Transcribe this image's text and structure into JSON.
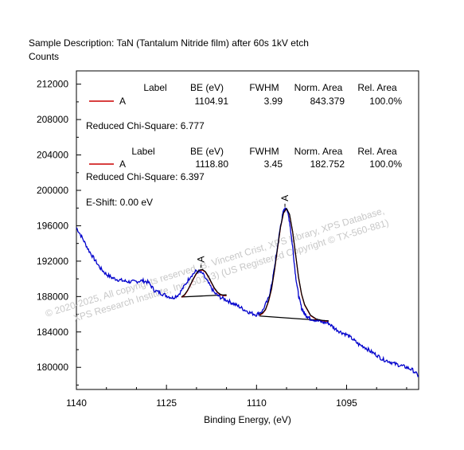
{
  "chart_data": {
    "type": "line",
    "title": "Sample Description:  TaN (Tantalum Nitride film) after 60s 1kV etch",
    "ylabel": "Counts",
    "xlabel": "Binding Energy, (eV)",
    "x_reversed": true,
    "xlim": [
      1140,
      1083
    ],
    "ylim": [
      177500,
      213500
    ],
    "x_ticks": [
      1140,
      1125,
      1110,
      1095
    ],
    "y_ticks": [
      180000,
      184000,
      188000,
      192000,
      196000,
      200000,
      204000,
      208000,
      212000
    ],
    "x_tick_labels": [
      "1140",
      "1125",
      "1110",
      "1095"
    ],
    "y_tick_labels": [
      "180000",
      "184000",
      "188000",
      "192000",
      "196000",
      "200000",
      "204000",
      "208000",
      "212000"
    ],
    "grid": false,
    "colors": {
      "spectrum": "#0000cc",
      "component": "#cc0000",
      "envelope": "#000000",
      "background": "#000000"
    },
    "spectrum": {
      "x": [
        1140,
        1139,
        1138,
        1137,
        1136,
        1135,
        1134,
        1133,
        1132,
        1131,
        1130,
        1129,
        1128,
        1127,
        1126,
        1125,
        1124,
        1123,
        1122,
        1121,
        1120,
        1119,
        1118,
        1117,
        1116,
        1115,
        1114,
        1113,
        1112,
        1111,
        1110,
        1109,
        1108,
        1107.5,
        1107,
        1106.5,
        1106,
        1105.5,
        1105,
        1104.5,
        1104,
        1103.5,
        1103,
        1102.5,
        1102,
        1101.5,
        1101,
        1100,
        1099,
        1098,
        1097,
        1096,
        1095,
        1094,
        1093,
        1092,
        1091,
        1090,
        1089,
        1088,
        1087,
        1086,
        1085,
        1084,
        1083
      ],
      "y": [
        195800,
        194600,
        193300,
        192200,
        191200,
        190500,
        190100,
        189900,
        189750,
        189650,
        189700,
        189800,
        189600,
        188700,
        188400,
        188100,
        187850,
        188200,
        189200,
        190300,
        190900,
        190600,
        189500,
        188400,
        187900,
        187600,
        187250,
        186900,
        186500,
        186150,
        185950,
        186400,
        187800,
        189200,
        191300,
        193600,
        196000,
        197700,
        198100,
        196500,
        193700,
        190400,
        188100,
        186700,
        186050,
        185750,
        185500,
        185300,
        185100,
        185000,
        184400,
        184000,
        183700,
        183200,
        182600,
        182300,
        181800,
        181400,
        180900,
        180700,
        180400,
        180200,
        180000,
        179700,
        179000
      ]
    },
    "peaks": [
      {
        "label": "A",
        "be": 1118.8,
        "fwhm": 3.45,
        "bg_from": [
          1122.5,
          187950
        ],
        "bg_to": [
          1115.0,
          188200
        ],
        "envelope_x": [
          1122.5,
          1122,
          1121.5,
          1121,
          1120.5,
          1120,
          1119.5,
          1119,
          1118.5,
          1118,
          1117.5,
          1117,
          1116.5,
          1116,
          1115.5,
          1115
        ],
        "envelope_y": [
          187960,
          188200,
          188700,
          189350,
          190050,
          190650,
          191000,
          191050,
          190800,
          190250,
          189600,
          188950,
          188500,
          188250,
          188150,
          188150
        ]
      },
      {
        "label": "A",
        "be": 1104.91,
        "fwhm": 3.99,
        "bg_from": [
          1109.5,
          185800
        ],
        "bg_to": [
          1098.0,
          185250
        ],
        "envelope_x": [
          1109.5,
          1109,
          1108.5,
          1108,
          1107.5,
          1107,
          1106.5,
          1106,
          1105.5,
          1105,
          1104.5,
          1104,
          1103.5,
          1103,
          1102.5,
          1102,
          1101,
          1100,
          1099,
          1098
        ],
        "envelope_y": [
          185950,
          186150,
          186550,
          187500,
          188900,
          191000,
          193500,
          195900,
          197500,
          197950,
          197300,
          195400,
          192800,
          190200,
          188300,
          187100,
          185900,
          185450,
          185300,
          185250
        ]
      }
    ],
    "tables": [
      {
        "headers": [
          "Label",
          "BE (eV)",
          "FWHM",
          "Norm. Area",
          "Rel. Area"
        ],
        "rows": [
          [
            "A",
            "1104.91",
            "3.99",
            "843.379",
            "100.0%"
          ]
        ],
        "chi_square": "Reduced Chi-Square: 6.777"
      },
      {
        "headers": [
          "Label",
          "BE (eV)",
          "FWHM",
          "Norm. Area",
          "Rel. Area"
        ],
        "rows": [
          [
            "A",
            "1118.80",
            "3.45",
            "182.752",
            "100.0%"
          ]
        ],
        "chi_square": "Reduced Chi-Square: 6.397"
      }
    ],
    "e_shift": "E-Shift: 0.00 eV",
    "watermark": [
      "© 2020-2025,  All copyrights reserved,   B. Vincent Crist,  XPS Library, XPS Database,",
      "XPS Research Institute, Inc (501c3)   (US Registered Copyright © TX-560-881)"
    ]
  }
}
